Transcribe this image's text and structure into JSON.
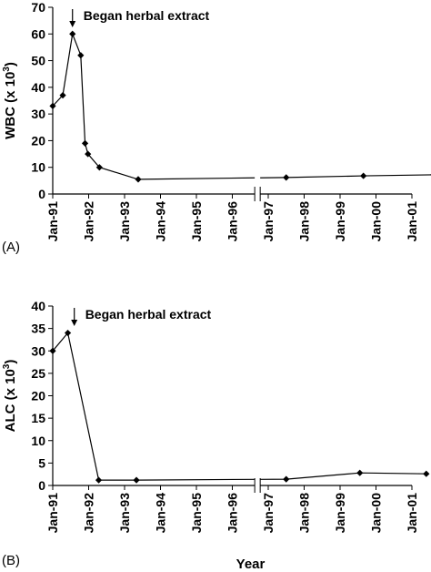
{
  "chart_data": [
    {
      "type": "line",
      "panel_label": "(A)",
      "ylabel_main": "WBC",
      "ylabel_unit": "(x 10",
      "ylabel_exp": "3",
      "ylabel_close": ")",
      "xlabel": "",
      "ylim": [
        0,
        70
      ],
      "yticks": [
        0,
        10,
        20,
        30,
        40,
        50,
        60,
        70
      ],
      "xticks": [
        "Jan-91",
        "Jan-92",
        "Jan-93",
        "Jan-94",
        "Jan-95",
        "Jan-96",
        "Jan-97",
        "Jan-98",
        "Jan-99",
        "Jan-00",
        "Jan-01"
      ],
      "axis_break_between": [
        "Jan-96",
        "Jan-97"
      ],
      "annotation": "Began herbal extract",
      "annotation_at": 0.55,
      "series": [
        {
          "x": [
            0.0,
            0.28,
            0.55,
            0.78,
            0.9,
            0.98,
            1.3,
            2.38,
            6.5,
            8.65,
            10.6
          ],
          "values": [
            33,
            37,
            60,
            52,
            19,
            15,
            10,
            5.5,
            6.2,
            6.8,
            7.2
          ]
        }
      ]
    },
    {
      "type": "line",
      "panel_label": "(B)",
      "ylabel_main": "ALC",
      "ylabel_unit": "(x 10",
      "ylabel_exp": "3",
      "ylabel_close": ")",
      "xlabel": "Year",
      "ylim": [
        0,
        40
      ],
      "yticks": [
        0,
        5,
        10,
        15,
        20,
        25,
        30,
        35,
        40
      ],
      "xticks": [
        "Jan-91",
        "Jan-92",
        "Jan-93",
        "Jan-94",
        "Jan-95",
        "Jan-96",
        "Jan-97",
        "Jan-98",
        "Jan-99",
        "Jan-00",
        "Jan-01"
      ],
      "axis_break_between": [
        "Jan-96",
        "Jan-97"
      ],
      "annotation": "Began herbal extract",
      "annotation_at": 0.6,
      "series": [
        {
          "x": [
            0.0,
            0.42,
            1.28,
            2.33,
            6.5,
            8.55,
            10.4
          ],
          "values": [
            30,
            34,
            1.2,
            1.2,
            1.4,
            2.8,
            2.6
          ]
        }
      ]
    }
  ]
}
